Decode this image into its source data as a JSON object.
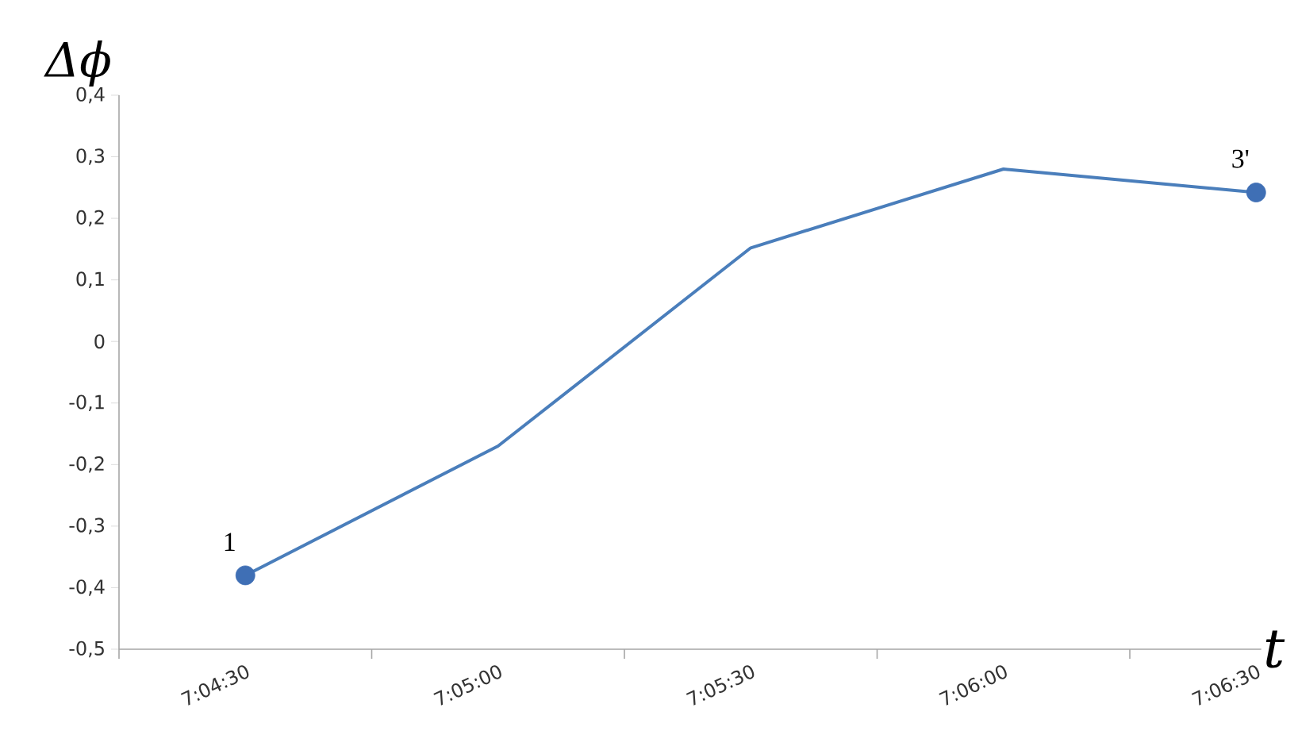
{
  "chart_data": {
    "type": "line",
    "ylabel": "Δϕ",
    "xlabel": "t",
    "categories": [
      "7:04:30",
      "7:05:00",
      "7:05:30",
      "7:06:00",
      "7:06:30"
    ],
    "series": [
      {
        "type": "line",
        "color": "#4a7ebb",
        "values": [
          -0.38,
          -0.17,
          0.152,
          0.28,
          0.242
        ],
        "marker": "none"
      },
      {
        "type": "scatter",
        "color": "#3f6fb5",
        "x": [
          "7:04:30",
          "7:06:30"
        ],
        "values": [
          -0.38,
          0.242
        ],
        "marker": "circle"
      }
    ],
    "ylim": [
      -0.5,
      0.4
    ],
    "yticks": [
      {
        "value": -0.5,
        "label": "-0,5"
      },
      {
        "value": -0.4,
        "label": "-0,4"
      },
      {
        "value": -0.3,
        "label": "-0,3"
      },
      {
        "value": -0.2,
        "label": "-0,2"
      },
      {
        "value": -0.1,
        "label": "-0,1"
      },
      0,
      {
        "value": 0.1,
        "label": "0,1"
      },
      {
        "value": 0.2,
        "label": "0,2"
      },
      {
        "value": 0.3,
        "label": "0,3"
      },
      {
        "value": 0.4,
        "label": "0,4"
      }
    ],
    "annotations": [
      {
        "text": "1",
        "x": "7:04:30",
        "y": -0.38
      },
      {
        "text": "3'",
        "x": "7:06:30",
        "y": 0.242
      }
    ],
    "grid": false
  }
}
